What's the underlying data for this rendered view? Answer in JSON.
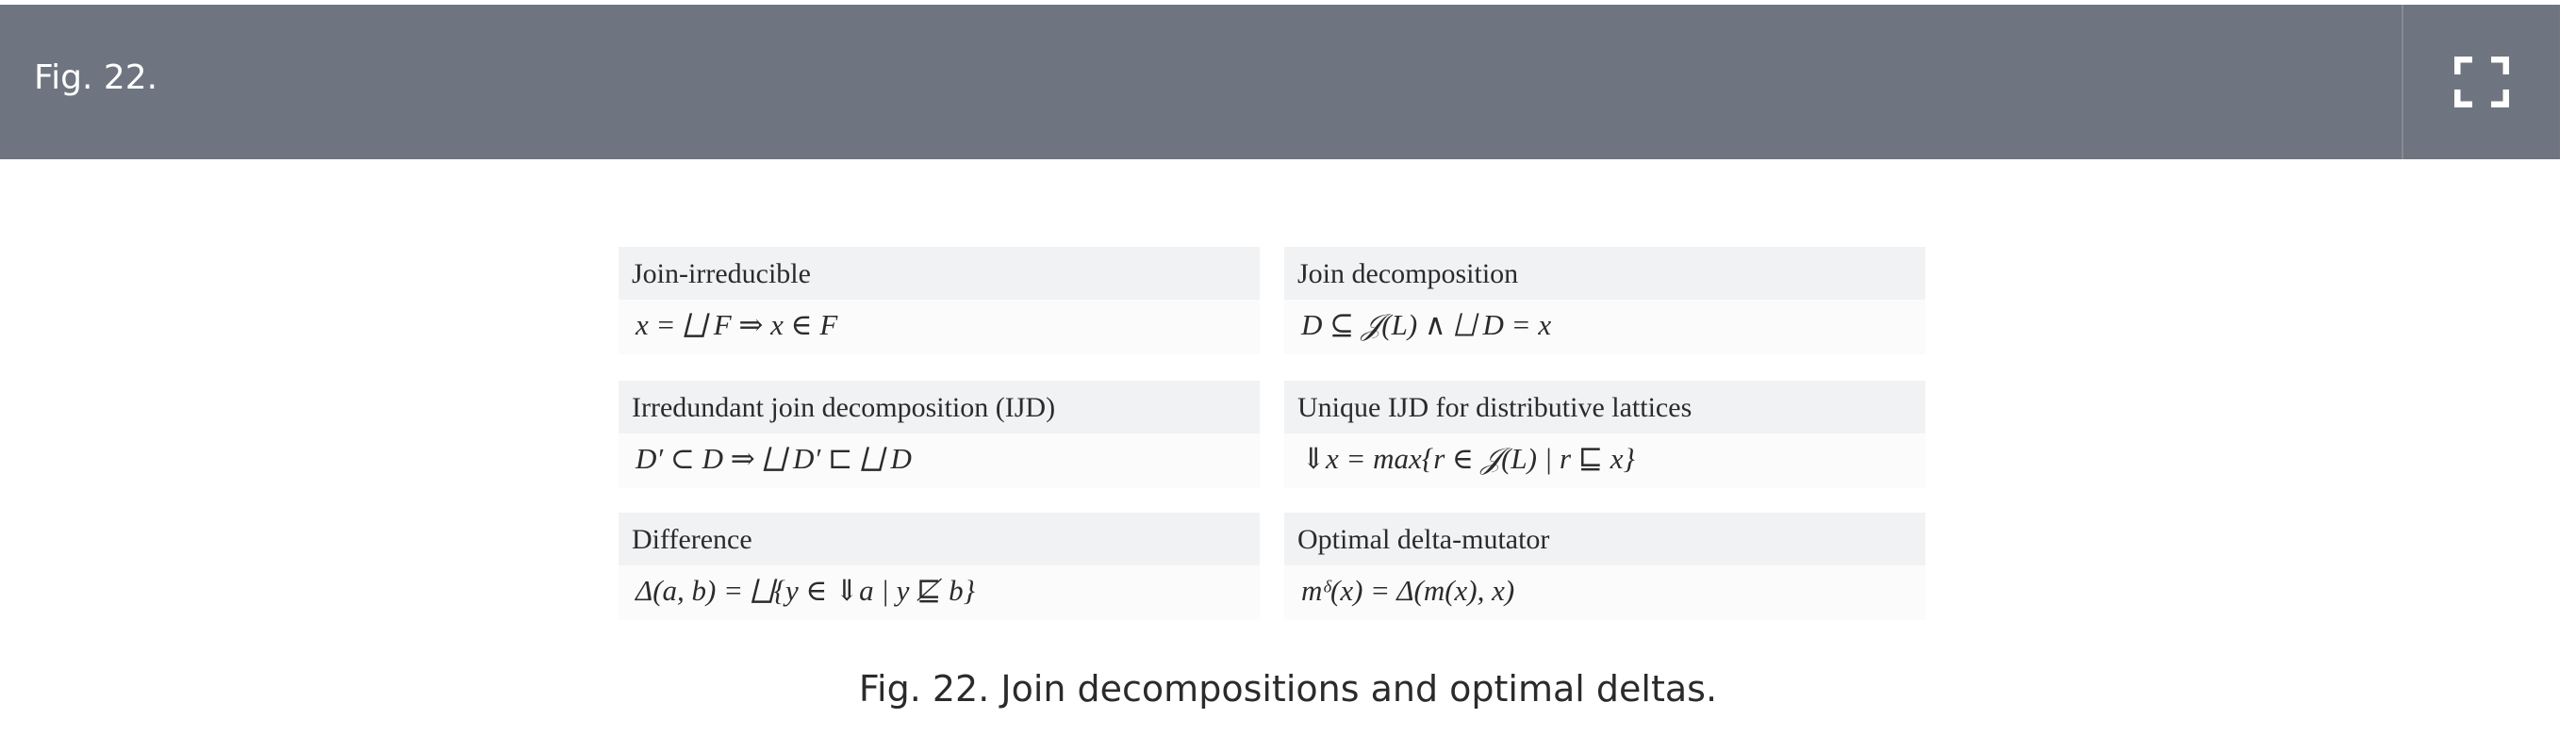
{
  "header": {
    "title": "Fig. 22.",
    "expand_icon": "fullscreen-expand-icon"
  },
  "figure": {
    "cells": [
      {
        "label": "Join-irreducible",
        "formula": "x = ⨆ F ⇒ x ∈ F"
      },
      {
        "label": "Join decomposition",
        "formula": "D ⊆ 𝒥(L) ∧ ⨆ D = x"
      },
      {
        "label": "Irredundant join decomposition (IJD)",
        "formula": "D′ ⊂ D ⇒ ⨆ D′ ⊏ ⨆ D"
      },
      {
        "label": "Unique IJD for distributive lattices",
        "formula": "⇓x = max{r ∈ 𝒥(L) | r ⊑ x}"
      },
      {
        "label": "Difference",
        "formula": "Δ(a, b) = ⨆{y ∈ ⇓a | y ⋢ b}"
      },
      {
        "label": "Optimal delta-mutator",
        "formula": "mᵟ(x) = Δ(m(x), x)"
      }
    ]
  },
  "caption": "Fig. 22. Join decompositions and optimal deltas.",
  "colors": {
    "header_bg": "#6e7580",
    "label_bg": "#f1f2f3",
    "formula_bg": "#fbfbfb",
    "text": "#2b2b2b"
  }
}
